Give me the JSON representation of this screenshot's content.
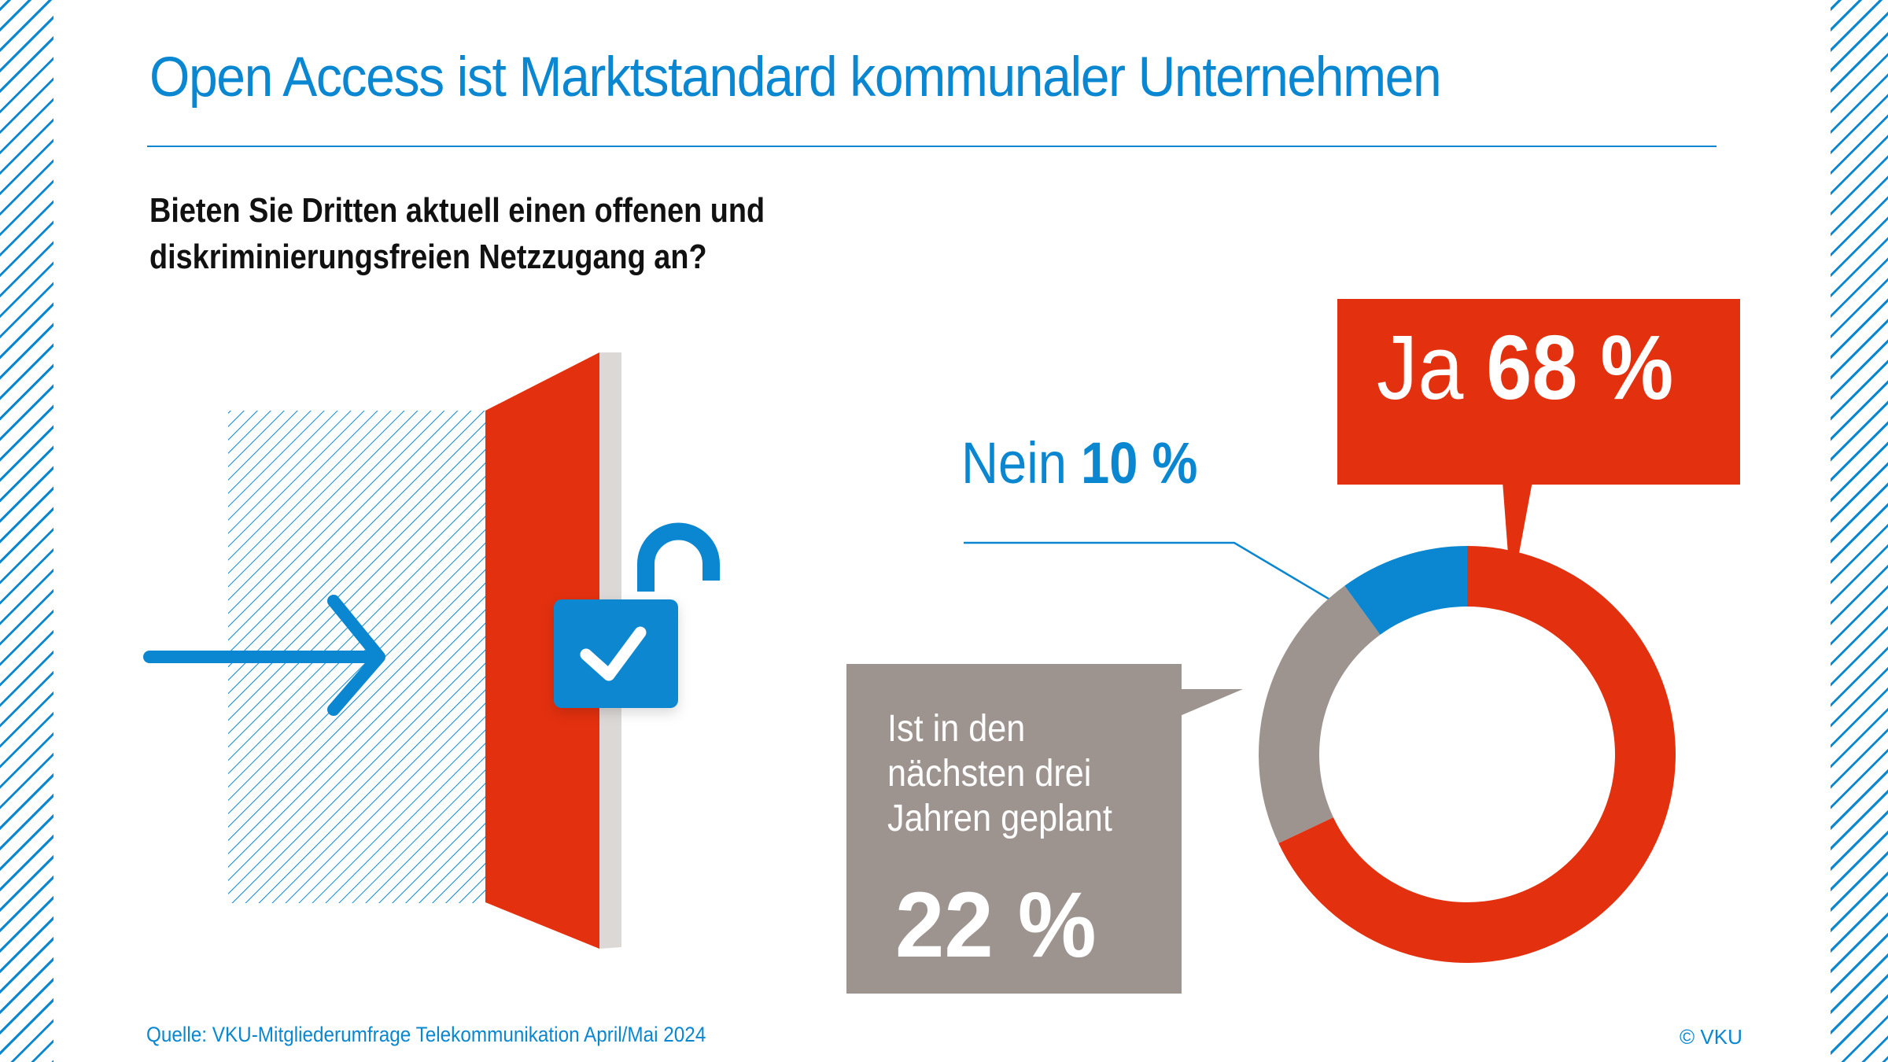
{
  "title": "Open Access ist Marktstandard kommunaler Unternehmen",
  "question": {
    "line1": "Bieten Sie Dritten aktuell einen offenen und",
    "line2": "diskriminierungsfreien Netzzugang an?"
  },
  "colors": {
    "accent_blue": "#0a87d0",
    "red": "#e3300f",
    "grey": "#9d9490",
    "door_edge": "#dcd8d6",
    "text_dark": "#111111"
  },
  "illustration": {
    "icons": [
      "arrow-right-icon",
      "door-icon",
      "open-padlock-icon",
      "checkmark-icon"
    ]
  },
  "labels": {
    "ja": {
      "label": "Ja",
      "value": "68 %"
    },
    "nein": {
      "label": "Nein",
      "value": "10 %"
    },
    "planned": {
      "lines": [
        "Ist in den",
        "nächsten drei",
        "Jahren geplant"
      ],
      "value": "22 %"
    }
  },
  "chart_data": {
    "type": "pie",
    "variant": "donut",
    "title": "Bieten Sie Dritten aktuell einen offenen und diskriminierungsfreien Netzzugang an?",
    "categories": [
      "Ja",
      "Ist in den nächsten drei Jahren geplant",
      "Nein"
    ],
    "values": [
      68,
      22,
      10
    ],
    "unit": "%",
    "colors": [
      "#e3300f",
      "#9d9490",
      "#0a87d0"
    ],
    "start": "top",
    "direction": "clockwise",
    "legend": "callouts"
  },
  "footer": {
    "source": "Quelle: VKU-Mitgliederumfrage Telekommunikation April/Mai 2024",
    "copyright": "© VKU"
  }
}
